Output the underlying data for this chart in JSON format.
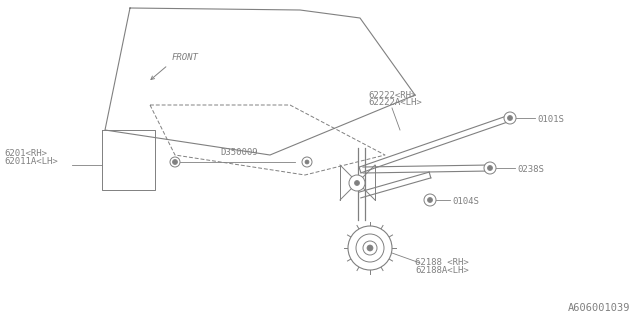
{
  "background_color": "#ffffff",
  "line_color": "#808080",
  "text_color": "#808080",
  "title_bottom": "A606001039",
  "label_6201": "6201<RH>",
  "label_62011A": "62011A<LH>",
  "label_62222": "62222<RH>",
  "label_62222A": "62222A<LH>",
  "label_0101S": "0101S",
  "label_0238S": "0238S",
  "label_D350009": "D350009",
  "label_0104S": "0104S",
  "label_62188": "62188 <RH>",
  "label_62188A": "62188A<LH>",
  "front_text": "FRONT",
  "font_size_label": 6.5,
  "font_size_title": 7.5,
  "font_size_front": 6.5
}
